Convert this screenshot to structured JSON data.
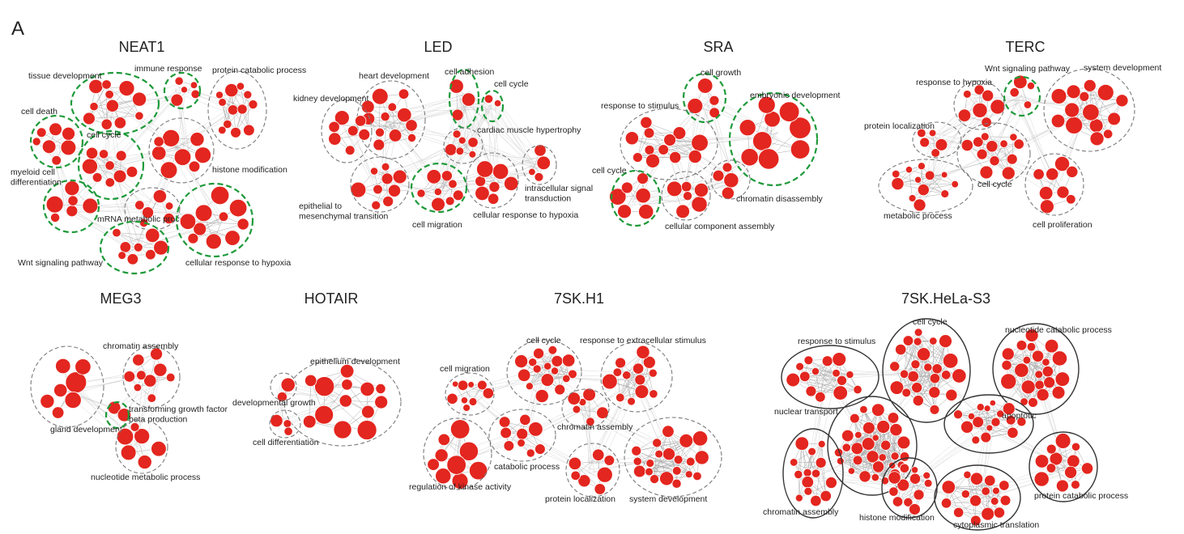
{
  "figure": {
    "panel_letter": "A",
    "panels": [
      {
        "id": "neat1",
        "title": "NEAT1",
        "clusters": [
          {
            "label": "tissue development",
            "style": "green"
          },
          {
            "label": "immune response",
            "style": "green"
          },
          {
            "label": "protein catabolic process",
            "style": "gray"
          },
          {
            "label": "cell death",
            "style": "green"
          },
          {
            "label": "cell cycle",
            "style": "green"
          },
          {
            "label": "histone modification",
            "style": "gray"
          },
          {
            "label": "myeloid cell differentiation",
            "style": "green"
          },
          {
            "label": "mRNA metabolic process",
            "style": "gray"
          },
          {
            "label": "cellular response to hypoxia",
            "style": "green"
          },
          {
            "label": "Wnt signaling pathway",
            "style": "green"
          }
        ]
      },
      {
        "id": "led",
        "title": "LED",
        "clusters": [
          {
            "label": "heart development",
            "style": "gray"
          },
          {
            "label": "cell adhesion",
            "style": "green"
          },
          {
            "label": "cell cycle",
            "style": "green"
          },
          {
            "label": "kidney development",
            "style": "gray"
          },
          {
            "label": "cardiac muscle hypertrophy",
            "style": "gray"
          },
          {
            "label": "intracellular signal transduction",
            "style": "gray"
          },
          {
            "label": "epithelial to mesenchymal transition",
            "style": "gray"
          },
          {
            "label": "cell migration",
            "style": "green"
          },
          {
            "label": "cellular response to hypoxia",
            "style": "gray"
          }
        ]
      },
      {
        "id": "sra",
        "title": "SRA",
        "clusters": [
          {
            "label": "cell growth",
            "style": "green"
          },
          {
            "label": "response to stimulus",
            "style": "gray"
          },
          {
            "label": "embryonic development",
            "style": "green"
          },
          {
            "label": "cell cycle",
            "style": "green"
          },
          {
            "label": "chromatin disassembly",
            "style": "gray"
          },
          {
            "label": "cellular component assembly",
            "style": "gray"
          }
        ]
      },
      {
        "id": "terc",
        "title": "TERC",
        "clusters": [
          {
            "label": "Wnt signaling pathway",
            "style": "green"
          },
          {
            "label": "system development",
            "style": "gray"
          },
          {
            "label": "response to hypoxia",
            "style": "gray"
          },
          {
            "label": "protein localization",
            "style": "gray"
          },
          {
            "label": "cell cycle",
            "style": "gray"
          },
          {
            "label": "metabolic process",
            "style": "gray"
          },
          {
            "label": "cell proliferation",
            "style": "gray"
          }
        ]
      },
      {
        "id": "meg3",
        "title": "MEG3",
        "clusters": [
          {
            "label": "chromatin assembly",
            "style": "gray"
          },
          {
            "label": "transforming growth factor beta production",
            "style": "green"
          },
          {
            "label": "gland development",
            "style": "gray"
          },
          {
            "label": "nucleotide metabolic process",
            "style": "gray"
          }
        ]
      },
      {
        "id": "hotair",
        "title": "HOTAIR",
        "clusters": [
          {
            "label": "epithelium development",
            "style": "gray"
          },
          {
            "label": "developmental growth",
            "style": "gray"
          },
          {
            "label": "cell differentiation",
            "style": "gray"
          }
        ]
      },
      {
        "id": "sk7h1",
        "title": "7SK.H1",
        "clusters": [
          {
            "label": "cell cycle",
            "style": "gray"
          },
          {
            "label": "response to extracellular stimulus",
            "style": "gray"
          },
          {
            "label": "cell migration",
            "style": "gray"
          },
          {
            "label": "chromatin assembly",
            "style": "gray"
          },
          {
            "label": "catabolic process",
            "style": "gray"
          },
          {
            "label": "regulation of kinase activity",
            "style": "gray"
          },
          {
            "label": "protein localization",
            "style": "gray"
          },
          {
            "label": "system development",
            "style": "gray"
          }
        ]
      },
      {
        "id": "sk7hela",
        "title": "7SK.HeLa-S3",
        "clusters": [
          {
            "label": "cell cycle",
            "style": "solid"
          },
          {
            "label": "response to stimulus",
            "style": "solid"
          },
          {
            "label": "nucleotide catabolic process",
            "style": "solid"
          },
          {
            "label": "nuclear transport",
            "style": "solid"
          },
          {
            "label": "apoptotic",
            "style": "solid"
          },
          {
            "label": "protein catabolic process",
            "style": "solid"
          },
          {
            "label": "chromatin assembly",
            "style": "solid"
          },
          {
            "label": "histone modification",
            "style": "solid"
          },
          {
            "label": "cytoplasmic translation",
            "style": "solid"
          }
        ]
      }
    ]
  },
  "colors": {
    "node": "#e3261f",
    "edge": "#a9a9a9",
    "boundary_gray": "#7a7a7a",
    "boundary_green": "#1f9a3a",
    "boundary_solid": "#333333"
  }
}
